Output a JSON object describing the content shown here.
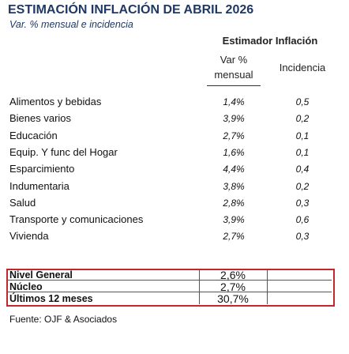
{
  "header": {
    "title": "ESTIMACIÓN INFLACIÓN DE ABRIL 2026",
    "subtitle": "Var. % mensual e incidencia"
  },
  "table": {
    "group_header": "Estimador Inflación",
    "columns": [
      "Var % mensual",
      "Incidencia"
    ],
    "rows": [
      [
        "Alimentos y bebidas",
        "1,4%",
        "0,5"
      ],
      [
        "Bienes varios",
        "3,9%",
        "0,2"
      ],
      [
        "Educación",
        "2,7%",
        "0,1"
      ],
      [
        "Equip. Y func del Hogar",
        "1,6%",
        "0,1"
      ],
      [
        "Esparcimiento",
        "4,4%",
        "0,4"
      ],
      [
        "Indumentaria",
        "3,8%",
        "0,2"
      ],
      [
        "Salud",
        "2,8%",
        "0,3"
      ],
      [
        "Transporte y comunicaciones",
        "3,9%",
        "0,6"
      ],
      [
        "Vivienda",
        "2,7%",
        "0,3"
      ]
    ]
  },
  "summary": {
    "rows": [
      [
        "Nivel General",
        "2,6%"
      ],
      [
        "Núcleo",
        "2,7%"
      ],
      [
        "Últimos 12 meses",
        "30,7%"
      ]
    ]
  },
  "footer": {
    "source": "Fuente: OJF & Asociados"
  }
}
